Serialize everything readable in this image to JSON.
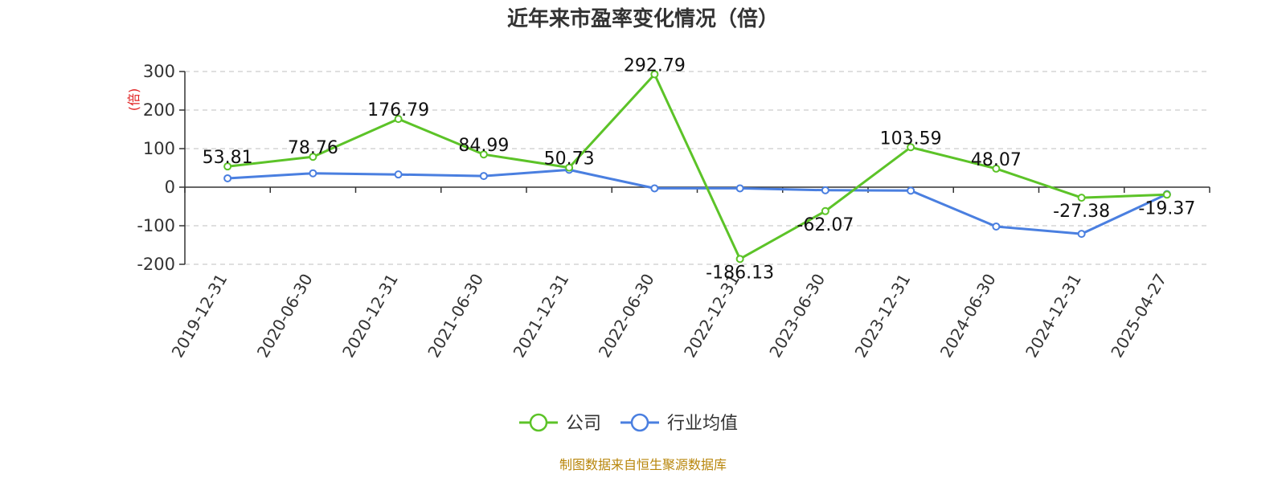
{
  "chart_data": {
    "type": "line",
    "title": "近年来市盈率变化情况（倍）",
    "ylabel": "(倍)",
    "categories": [
      "2019-12-31",
      "2020-06-30",
      "2020-12-31",
      "2021-06-30",
      "2021-12-31",
      "2022-06-30",
      "2022-12-31",
      "2023-06-30",
      "2023-12-31",
      "2024-06-30",
      "2024-12-31",
      "2025-04-27"
    ],
    "ylim": [
      -200,
      300
    ],
    "yticks": [
      -200,
      -100,
      0,
      100,
      200,
      300
    ],
    "ytick_labels": [
      "-200",
      "-100",
      "0",
      "100",
      "200",
      "300"
    ],
    "grid": true,
    "legend": "bottom-center",
    "series": [
      {
        "name": "公司",
        "color": "#5cc328",
        "values": [
          53.81,
          78.76,
          176.79,
          84.99,
          50.73,
          292.79,
          -186.13,
          -62.07,
          103.59,
          48.07,
          -27.38,
          -19.37
        ],
        "labels": [
          "53.81",
          "78.76",
          "176.79",
          "84.99",
          "50.73",
          "292.79",
          "-186.13",
          "-62.07",
          "103.59",
          "48.07",
          "-27.38",
          "-19.37"
        ]
      },
      {
        "name": "行业均值",
        "color": "#4a7fe0",
        "values": [
          23,
          36,
          33,
          29,
          45,
          -3,
          -3,
          -8,
          -9,
          -102,
          -121,
          -18
        ]
      }
    ],
    "source": "制图数据来自恒生聚源数据库"
  }
}
